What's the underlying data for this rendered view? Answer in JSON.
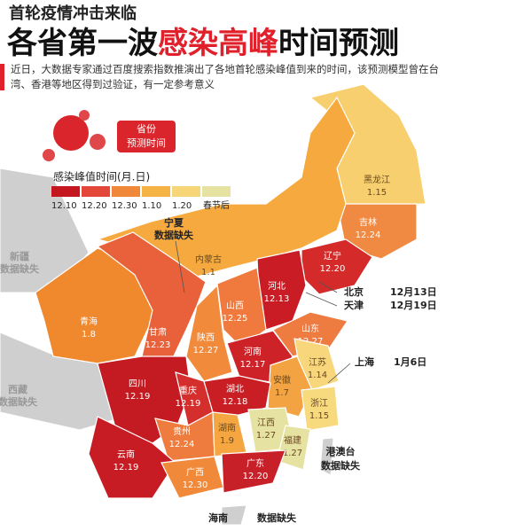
{
  "header": {
    "kicker": "首轮疫情冲击来临",
    "title": {
      "lead": "各省第一波",
      "highlight": "感染高峰",
      "tail": "时间预测"
    },
    "description": "近日，大数据专家通过百度搜索指数推演出了各地首轮感染峰值到来的时间，该预测模型曾在台湾、香港等地区得到过验证，有一定参考意义"
  },
  "badge": {
    "line1": "省份",
    "line2": "预测时间"
  },
  "legend": {
    "title": "感染峰值时间(月.日)",
    "items": [
      {
        "label": "12.10",
        "color": "#c4161f"
      },
      {
        "label": "12.20",
        "color": "#e2473a"
      },
      {
        "label": "12.30",
        "color": "#f0883a"
      },
      {
        "label": "1.10",
        "color": "#f5b245"
      },
      {
        "label": "1.20",
        "color": "#f7d67a"
      },
      {
        "label": "春节后",
        "color": "#e6e2a2"
      }
    ]
  },
  "provinces": [
    {
      "name": "黑龙江",
      "date": "1.15",
      "color": "#f7cf6e"
    },
    {
      "name": "吉林",
      "date": "12.24",
      "color": "#f08a42"
    },
    {
      "name": "辽宁",
      "date": "12.20",
      "color": "#d42a2a"
    },
    {
      "name": "内蒙古",
      "date": "1.1",
      "color": "#f5a93f"
    },
    {
      "name": "河北",
      "date": "12.13",
      "color": "#c91c24"
    },
    {
      "name": "山西",
      "date": "12.25",
      "color": "#f07a3e"
    },
    {
      "name": "山东",
      "date": "12.27",
      "color": "#ee7b40"
    },
    {
      "name": "青海",
      "date": "1.8",
      "color": "#f0882e"
    },
    {
      "name": "甘肃",
      "date": "12.23",
      "color": "#e8613a"
    },
    {
      "name": "陕西",
      "date": "12.27",
      "color": "#f28a3c"
    },
    {
      "name": "河南",
      "date": "12.17",
      "color": "#cc2228"
    },
    {
      "name": "江苏",
      "date": "1.14",
      "color": "#f8d77c"
    },
    {
      "name": "安徽",
      "date": "1.7",
      "color": "#f3a341"
    },
    {
      "name": "四川",
      "date": "12.19",
      "color": "#c41a22"
    },
    {
      "name": "重庆",
      "date": "12.19",
      "color": "#d42f2d"
    },
    {
      "name": "湖北",
      "date": "12.18",
      "color": "#c91f24"
    },
    {
      "name": "浙江",
      "date": "1.15",
      "color": "#f8da7e"
    },
    {
      "name": "贵州",
      "date": "12.24",
      "color": "#ee7c3e"
    },
    {
      "name": "湖南",
      "date": "1.9",
      "color": "#f5a640"
    },
    {
      "name": "江西",
      "date": "1.27",
      "color": "#e6e2a2"
    },
    {
      "name": "福建",
      "date": "1.27",
      "color": "#e6e2a2"
    },
    {
      "name": "云南",
      "date": "12.19",
      "color": "#c81c24"
    },
    {
      "name": "广西",
      "date": "12.30",
      "color": "#f08a3a"
    },
    {
      "name": "广东",
      "date": "12.20",
      "color": "#c82028"
    }
  ],
  "callouts": [
    {
      "name": "宁夏",
      "note": "数据缺失"
    },
    {
      "name": "北京",
      "note": "12月13日"
    },
    {
      "name": "天津",
      "note": "12月19日"
    },
    {
      "name": "上海",
      "note": "1月6日"
    },
    {
      "name": "港澳台",
      "note": "数据缺失"
    },
    {
      "name": "海南",
      "note": "数据缺失"
    },
    {
      "name": "新疆",
      "note": "数据缺失"
    },
    {
      "name": "西藏",
      "note": "数据缺失"
    }
  ]
}
